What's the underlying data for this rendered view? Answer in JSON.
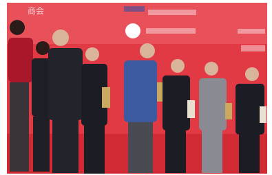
{
  "backdrop": {
    "texts": [
      "商会"
    ]
  }
}
